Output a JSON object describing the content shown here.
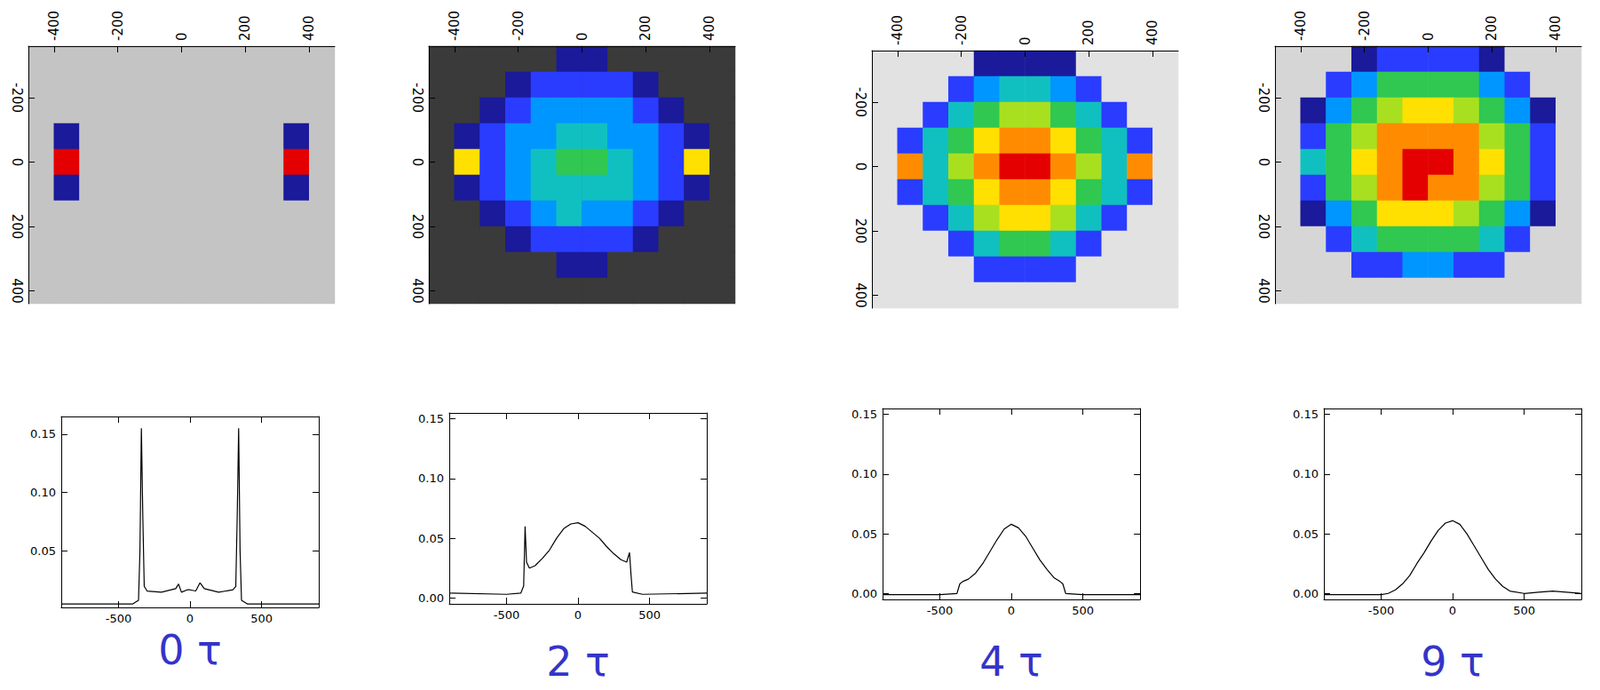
{
  "chart_data": [
    {
      "type": "heatmap",
      "x_cells": [
        -440,
        -360,
        -280,
        -200,
        -120,
        -40,
        40,
        120,
        200,
        280,
        360,
        440
      ],
      "y_cells": [
        -320,
        -240,
        -160,
        -80,
        0,
        80,
        160,
        240,
        320,
        400
      ],
      "cells": [
        [
          0,
          0,
          0,
          0,
          0,
          0,
          0,
          0,
          0,
          0,
          0,
          0
        ],
        [
          0,
          0,
          0,
          0,
          0,
          0,
          0,
          0,
          0,
          0,
          0,
          0
        ],
        [
          0,
          0,
          0,
          0,
          0,
          0,
          0,
          0,
          0,
          0,
          0,
          0
        ],
        [
          0,
          1,
          0,
          0,
          0,
          0,
          0,
          0,
          0,
          0,
          1,
          0
        ],
        [
          0,
          9,
          0,
          0,
          0,
          0,
          0,
          0,
          0,
          0,
          9,
          0
        ],
        [
          0,
          1,
          0,
          0,
          0,
          0,
          0,
          0,
          0,
          0,
          1,
          0
        ],
        [
          0,
          0,
          0,
          0,
          0,
          0,
          0,
          0,
          0,
          0,
          0,
          0
        ],
        [
          0,
          0,
          0,
          0,
          0,
          0,
          0,
          0,
          0,
          0,
          0,
          0
        ],
        [
          0,
          0,
          0,
          0,
          0,
          0,
          0,
          0,
          0,
          0,
          0,
          0
        ],
        [
          0,
          0,
          0,
          0,
          0,
          0,
          0,
          0,
          0,
          0,
          0,
          0
        ]
      ],
      "color_range": [
        0,
        9
      ],
      "xlim": [
        -480,
        480
      ],
      "xticks": [
        -400,
        -200,
        0,
        200,
        400
      ],
      "ylim": [
        -360,
        440
      ],
      "yticks": [
        -200,
        0,
        200,
        400
      ]
    },
    {
      "type": "line",
      "title": "0 τ",
      "color": "#000000",
      "x": [
        -900,
        -400,
        -360,
        -350,
        -340,
        -330,
        -320,
        -300,
        -200,
        -100,
        -80,
        -60,
        -20,
        0,
        40,
        70,
        100,
        200,
        300,
        320,
        330,
        340,
        350,
        360,
        400,
        900
      ],
      "values": [
        0.005,
        0.005,
        0.008,
        0.05,
        0.155,
        0.08,
        0.02,
        0.016,
        0.015,
        0.018,
        0.022,
        0.015,
        0.017,
        0.017,
        0.016,
        0.023,
        0.018,
        0.015,
        0.017,
        0.02,
        0.08,
        0.155,
        0.05,
        0.008,
        0.005,
        0.005
      ],
      "xlim": [
        -900,
        900
      ],
      "xticks": [
        -500,
        0,
        500
      ],
      "ylim": [
        0.002,
        0.165
      ],
      "yticks": [
        0.05,
        {
          "value": 0.1,
          "label": "0.10"
        },
        0.15
      ]
    },
    {
      "type": "heatmap",
      "x_cells": [
        -440,
        -360,
        -280,
        -200,
        -120,
        -40,
        40,
        120,
        200,
        280,
        360,
        440
      ],
      "y_cells": [
        -320,
        -240,
        -160,
        -80,
        0,
        80,
        160,
        240,
        320,
        400
      ],
      "cells": [
        [
          0,
          0,
          0,
          0,
          0,
          1,
          1,
          0,
          0,
          0,
          0,
          0
        ],
        [
          0,
          0,
          0,
          1,
          2,
          2,
          2,
          2,
          1,
          0,
          0,
          0
        ],
        [
          0,
          0,
          1,
          2,
          3,
          3,
          3,
          3,
          2,
          1,
          0,
          0
        ],
        [
          0,
          1,
          2,
          3,
          3,
          4,
          4,
          3,
          3,
          2,
          1,
          0
        ],
        [
          0,
          7,
          2,
          3,
          4,
          5,
          5,
          4,
          3,
          2,
          7,
          0
        ],
        [
          0,
          1,
          2,
          3,
          4,
          4,
          4,
          4,
          3,
          2,
          1,
          0
        ],
        [
          0,
          0,
          1,
          2,
          3,
          4,
          3,
          3,
          2,
          1,
          0,
          0
        ],
        [
          0,
          0,
          0,
          1,
          2,
          2,
          2,
          2,
          1,
          0,
          0,
          0
        ],
        [
          0,
          0,
          0,
          0,
          0,
          1,
          1,
          0,
          0,
          0,
          0,
          0
        ],
        [
          0,
          0,
          0,
          0,
          0,
          0,
          0,
          0,
          0,
          0,
          0,
          0
        ]
      ],
      "color_range": [
        0,
        9
      ],
      "xlim": [
        -480,
        480
      ],
      "xticks": [
        -400,
        -200,
        0,
        200,
        400
      ],
      "ylim": [
        -360,
        440
      ],
      "yticks": [
        -200,
        0,
        200,
        400
      ]
    },
    {
      "type": "line",
      "title": "2 τ",
      "color": "#000000",
      "x": [
        -900,
        -500,
        -400,
        -380,
        -370,
        -360,
        -340,
        -300,
        -250,
        -200,
        -150,
        -100,
        -50,
        0,
        50,
        100,
        150,
        200,
        250,
        300,
        340,
        360,
        370,
        380,
        450,
        900
      ],
      "values": [
        0.004,
        0.003,
        0.004,
        0.01,
        0.06,
        0.03,
        0.025,
        0.027,
        0.033,
        0.04,
        0.05,
        0.058,
        0.062,
        0.063,
        0.06,
        0.055,
        0.05,
        0.043,
        0.037,
        0.032,
        0.03,
        0.038,
        0.02,
        0.005,
        0.003,
        0.004
      ],
      "xlim": [
        -900,
        900
      ],
      "xticks": [
        -500,
        0,
        500
      ],
      "ylim": [
        -0.005,
        0.155
      ],
      "yticks": [
        {
          "value": 0,
          "label": "0.00"
        },
        0.05,
        {
          "value": 0.1,
          "label": "0.10"
        },
        0.15
      ]
    },
    {
      "type": "heatmap",
      "x_cells": [
        -440,
        -360,
        -280,
        -200,
        -120,
        -40,
        40,
        120,
        200,
        280,
        360,
        440
      ],
      "y_cells": [
        -320,
        -240,
        -160,
        -80,
        0,
        80,
        160,
        240,
        320,
        400
      ],
      "cells": [
        [
          0,
          0,
          0,
          0,
          1,
          1,
          1,
          1,
          0,
          0,
          0,
          0
        ],
        [
          0,
          0,
          0,
          2,
          3,
          4,
          4,
          3,
          2,
          0,
          0,
          0
        ],
        [
          0,
          0,
          2,
          4,
          5,
          6,
          6,
          5,
          4,
          2,
          0,
          0
        ],
        [
          0,
          2,
          4,
          5,
          7,
          8,
          8,
          7,
          5,
          4,
          2,
          0
        ],
        [
          0,
          8,
          4,
          6,
          8,
          9,
          9,
          8,
          6,
          4,
          8,
          0
        ],
        [
          0,
          2,
          4,
          5,
          7,
          8,
          8,
          7,
          5,
          4,
          2,
          0
        ],
        [
          0,
          0,
          2,
          4,
          6,
          7,
          7,
          6,
          4,
          2,
          0,
          0
        ],
        [
          0,
          0,
          0,
          2,
          4,
          5,
          5,
          4,
          2,
          0,
          0,
          0
        ],
        [
          0,
          0,
          0,
          0,
          2,
          2,
          2,
          2,
          0,
          0,
          0,
          0
        ],
        [
          0,
          0,
          0,
          0,
          0,
          0,
          0,
          0,
          0,
          0,
          0,
          0
        ]
      ],
      "color_range": [
        0,
        9
      ],
      "xlim": [
        -480,
        480
      ],
      "xticks": [
        -400,
        -200,
        0,
        200,
        400
      ],
      "ylim": [
        -360,
        440
      ],
      "yticks": [
        -200,
        0,
        200,
        400
      ]
    },
    {
      "type": "line",
      "title": "4 τ",
      "color": "#000000",
      "x": [
        -900,
        -500,
        -380,
        -360,
        -340,
        -300,
        -250,
        -200,
        -150,
        -100,
        -50,
        0,
        50,
        100,
        150,
        200,
        250,
        300,
        340,
        360,
        380,
        500,
        900
      ],
      "values": [
        -0.001,
        -0.001,
        0,
        0.008,
        0.01,
        0.012,
        0.017,
        0.025,
        0.035,
        0.045,
        0.054,
        0.058,
        0.055,
        0.048,
        0.038,
        0.028,
        0.02,
        0.013,
        0.01,
        0.008,
        0,
        -0.001,
        -0.001
      ],
      "xlim": [
        -900,
        900
      ],
      "xticks": [
        -500,
        0,
        500
      ],
      "ylim": [
        -0.005,
        0.155
      ],
      "yticks": [
        {
          "value": 0,
          "label": "0.00"
        },
        0.05,
        {
          "value": 0.1,
          "label": "0.10"
        },
        0.15
      ]
    },
    {
      "type": "heatmap",
      "x_cells": [
        -440,
        -360,
        -280,
        -200,
        -120,
        -40,
        40,
        120,
        200,
        280,
        360,
        440
      ],
      "y_cells": [
        -320,
        -240,
        -160,
        -80,
        0,
        80,
        160,
        240,
        320,
        400
      ],
      "cells": [
        [
          0,
          0,
          0,
          1,
          2,
          2,
          2,
          2,
          1,
          0,
          0,
          0
        ],
        [
          0,
          0,
          2,
          3,
          5,
          5,
          5,
          5,
          3,
          2,
          0,
          0
        ],
        [
          0,
          1,
          3,
          5,
          6,
          7,
          7,
          6,
          5,
          3,
          1,
          0
        ],
        [
          0,
          2,
          5,
          6,
          8,
          8,
          8,
          8,
          6,
          5,
          2,
          0
        ],
        [
          0,
          4,
          5,
          7,
          8,
          9,
          9,
          8,
          7,
          5,
          2,
          0
        ],
        [
          0,
          2,
          5,
          6,
          8,
          9,
          8,
          8,
          6,
          5,
          2,
          0
        ],
        [
          0,
          1,
          3,
          5,
          7,
          7,
          7,
          6,
          5,
          3,
          1,
          0
        ],
        [
          0,
          0,
          2,
          4,
          5,
          5,
          5,
          5,
          4,
          2,
          0,
          0
        ],
        [
          0,
          0,
          0,
          2,
          2,
          3,
          3,
          2,
          2,
          0,
          0,
          0
        ],
        [
          0,
          0,
          0,
          0,
          0,
          0,
          0,
          0,
          0,
          0,
          0,
          0
        ]
      ],
      "color_range": [
        0,
        9
      ],
      "xlim": [
        -480,
        480
      ],
      "xticks": [
        -400,
        -200,
        0,
        200,
        400
      ],
      "ylim": [
        -360,
        440
      ],
      "yticks": [
        -200,
        0,
        200,
        400
      ]
    },
    {
      "type": "line",
      "title": "9 τ",
      "color": "#000000",
      "x": [
        -900,
        -500,
        -450,
        -400,
        -350,
        -300,
        -250,
        -200,
        -150,
        -100,
        -50,
        0,
        50,
        100,
        150,
        200,
        250,
        300,
        350,
        400,
        500,
        600,
        700,
        900
      ],
      "values": [
        -0.001,
        -0.001,
        0,
        0.003,
        0.008,
        0.015,
        0.025,
        0.034,
        0.044,
        0.053,
        0.059,
        0.061,
        0.058,
        0.05,
        0.04,
        0.03,
        0.02,
        0.012,
        0.006,
        0.002,
        0,
        0.001,
        0.002,
        0
      ],
      "xlim": [
        -900,
        900
      ],
      "xticks": [
        -500,
        0,
        500
      ],
      "ylim": [
        -0.005,
        0.155
      ],
      "yticks": [
        {
          "value": 0,
          "label": "0.00"
        },
        0.05,
        {
          "value": 0.1,
          "label": "0.10"
        },
        0.15
      ]
    }
  ]
}
